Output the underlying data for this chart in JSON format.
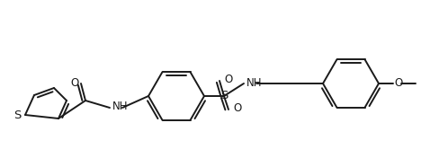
{
  "bg_color": "#ffffff",
  "line_color": "#1a1a1a",
  "line_width": 1.4,
  "font_size": 8.5,
  "figsize": [
    4.88,
    1.76
  ],
  "dpi": 100,
  "xlim": [
    0,
    488
  ],
  "ylim": [
    0,
    176
  ]
}
